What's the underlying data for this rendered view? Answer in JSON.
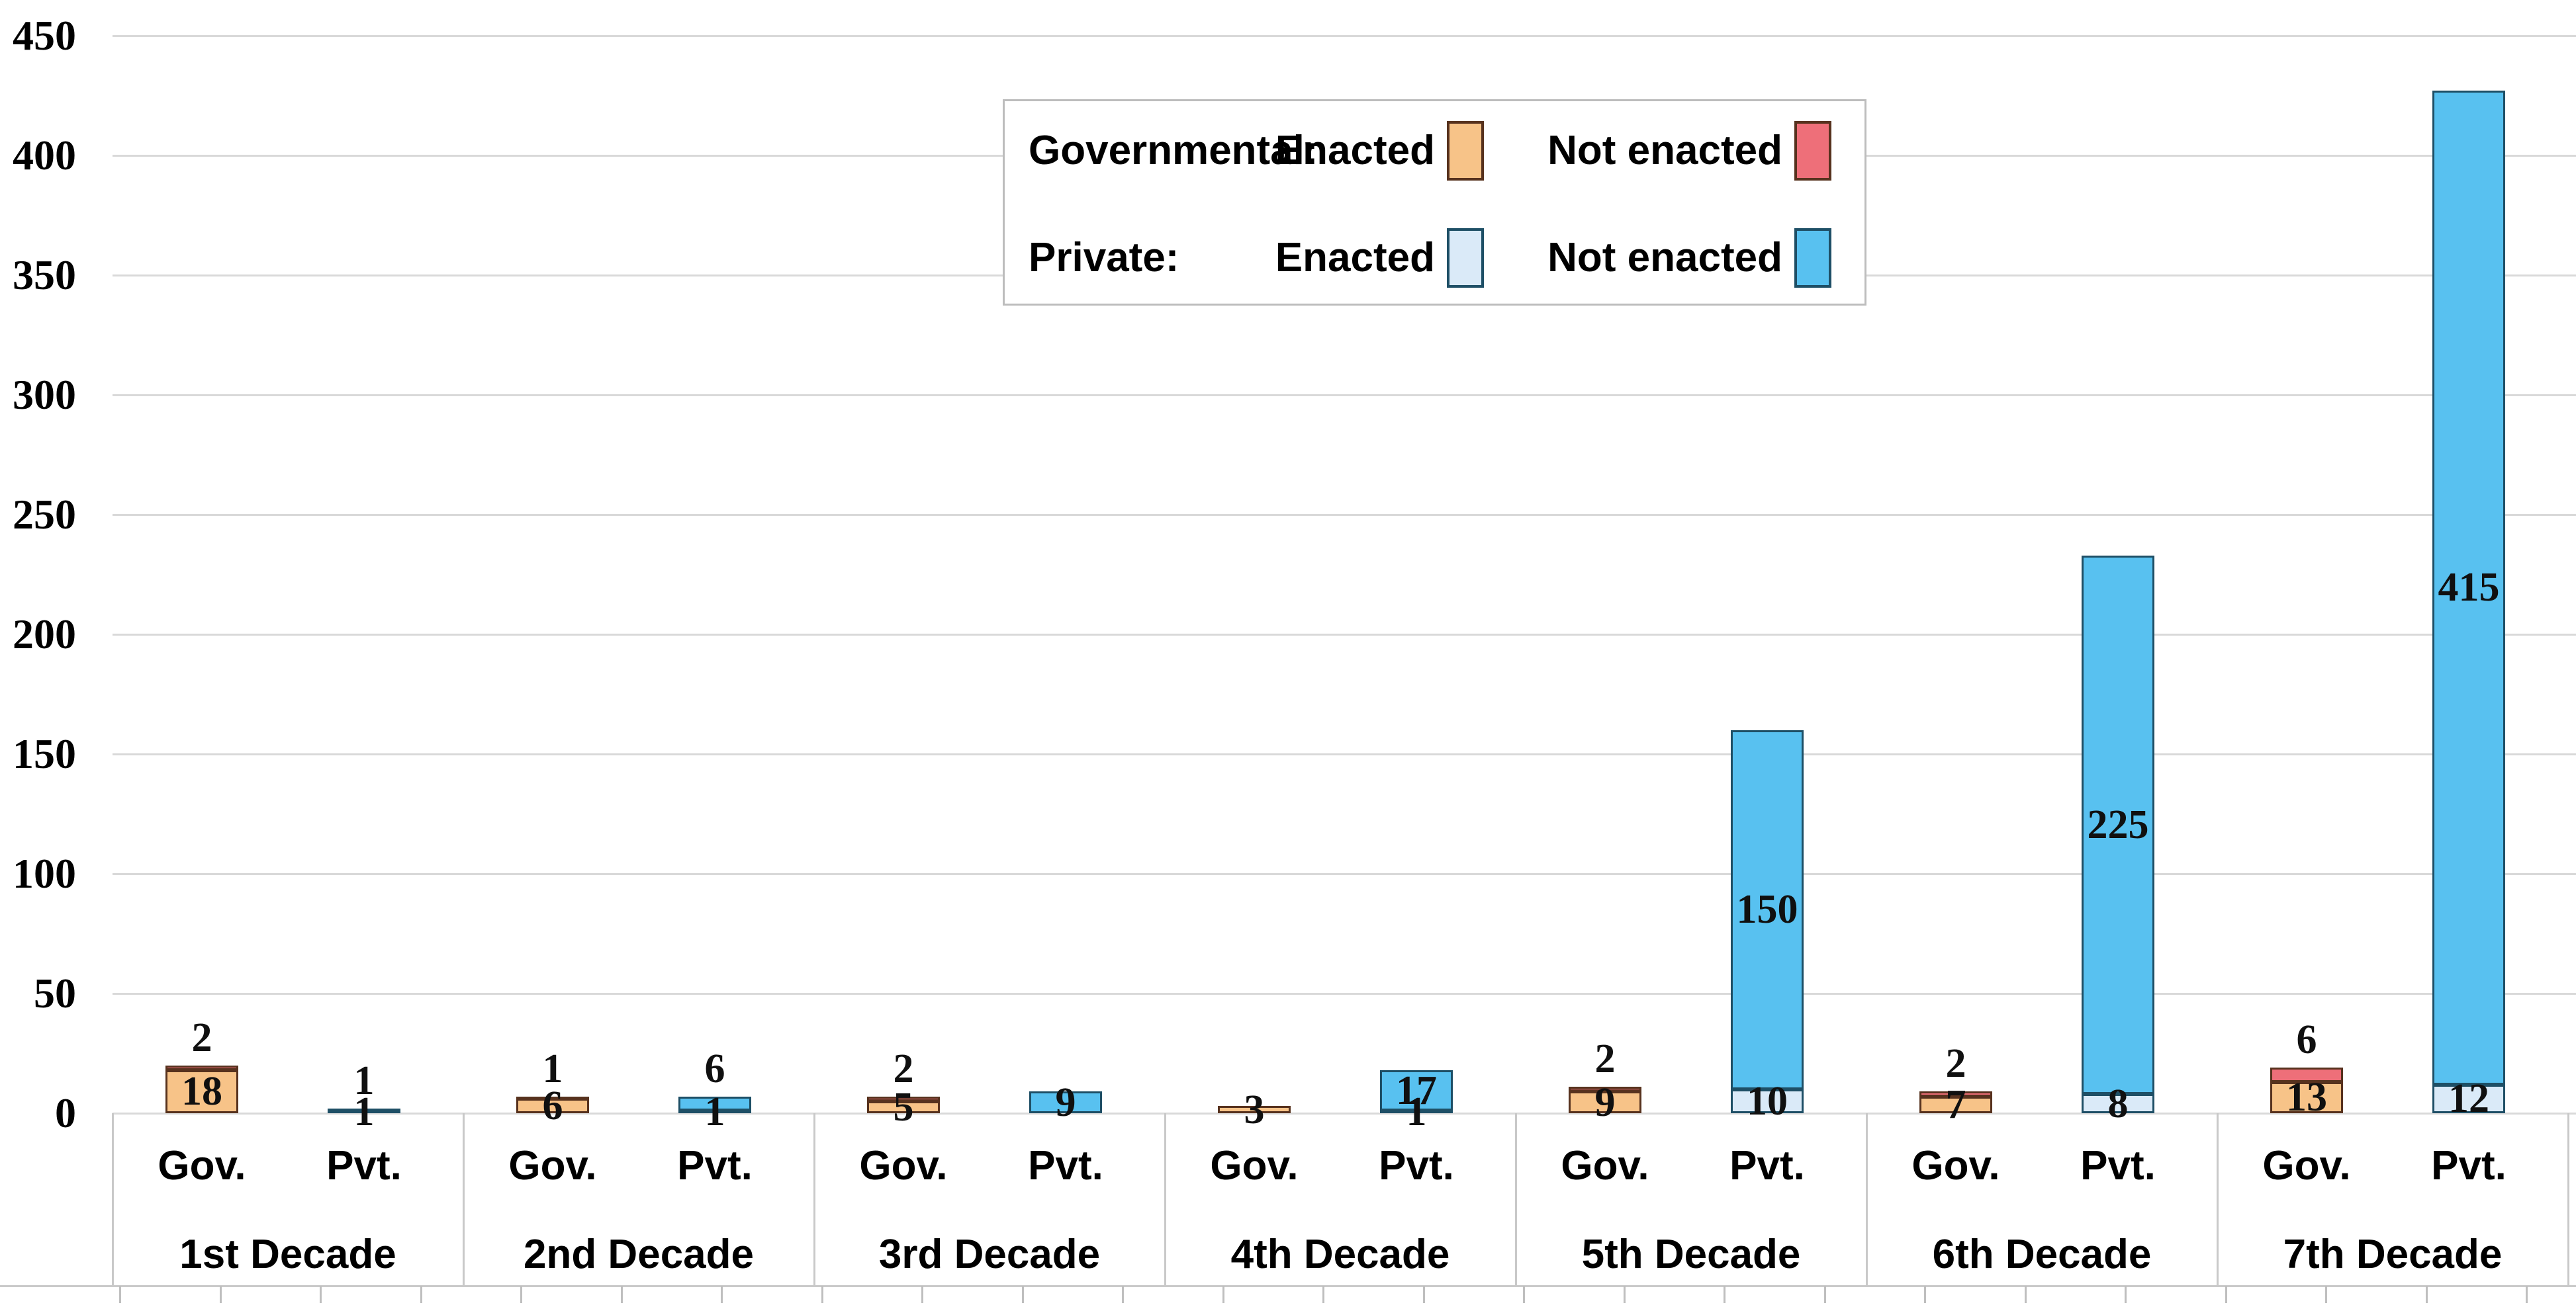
{
  "page": {
    "background": "#ffffff"
  },
  "colors": {
    "gov_enacted_fill": "#F7C388",
    "gov_not_enacted_fill": "#EE6F79",
    "gov_border": "#57321E",
    "pvt_enacted_fill": "#DAEAF8",
    "pvt_not_enacted_fill": "#58C1F0",
    "pvt_border": "#1E4F66",
    "gridline": "#D9D9D9",
    "divider": "#C9C9C9",
    "minor_tick": "#BFBFBF",
    "label_text": "#000000"
  },
  "legend": {
    "rows": [
      {
        "prefix": "Governmental:",
        "items": [
          {
            "label": "Enacted",
            "fill": "#F7C388",
            "border": "#57321E"
          },
          {
            "label": "Not enacted",
            "fill": "#EE6F79",
            "border": "#57321E"
          }
        ]
      },
      {
        "prefix": "Private:",
        "items": [
          {
            "label": "Enacted",
            "fill": "#DAEAF8",
            "border": "#1E4F66"
          },
          {
            "label": "Not enacted",
            "fill": "#58C1F0",
            "border": "#1E4F66"
          }
        ]
      }
    ]
  },
  "chart_data": {
    "type": "bar",
    "subtype": "grouped-stacked-columns",
    "title": "",
    "xlabel": "",
    "ylabel": "",
    "grid": "horizontal",
    "legend_position": "top-center",
    "y_axis": {
      "min": 0,
      "max": 450,
      "step": 50,
      "tick_labels": [
        "450",
        "400",
        "350",
        "300",
        "250",
        "200",
        "150",
        "100",
        "50",
        "0"
      ]
    },
    "x_axis": {
      "groups": [
        "1st Decade",
        "2nd Decade",
        "3rd Decade",
        "4th Decade",
        "5th Decade",
        "6th Decade",
        "7th Decade"
      ],
      "subcategories": [
        "Gov.",
        "Pvt."
      ]
    },
    "series": [
      {
        "name": "Governmental Enacted",
        "values": [
          18,
          6,
          5,
          3,
          9,
          7,
          13
        ]
      },
      {
        "name": "Governmental Not enacted",
        "values": [
          2,
          1,
          2,
          0,
          2,
          2,
          6
        ]
      },
      {
        "name": "Private Enacted",
        "values": [
          1,
          1,
          0,
          1,
          10,
          8,
          12
        ]
      },
      {
        "name": "Private Not enacted",
        "values": [
          1,
          6,
          9,
          17,
          150,
          225,
          415
        ]
      }
    ],
    "bars": [
      {
        "group": "1st Decade",
        "cat": "Gov.",
        "type": "gov",
        "enacted": 18,
        "not_enacted": 2,
        "labels": [
          {
            "text": "18",
            "pos": "seg1"
          },
          {
            "text": "2",
            "pos": "above"
          }
        ]
      },
      {
        "group": "1st Decade",
        "cat": "Pvt.",
        "type": "pvt",
        "enacted": 1,
        "not_enacted": 1,
        "labels": [
          {
            "text": "1",
            "pos": "seg1"
          },
          {
            "text": "1",
            "pos": "above"
          }
        ]
      },
      {
        "group": "2nd Decade",
        "cat": "Gov.",
        "type": "gov",
        "enacted": 6,
        "not_enacted": 1,
        "labels": [
          {
            "text": "6",
            "pos": "seg1"
          },
          {
            "text": "1",
            "pos": "above"
          }
        ]
      },
      {
        "group": "2nd Decade",
        "cat": "Pvt.",
        "type": "pvt",
        "enacted": 1,
        "not_enacted": 6,
        "labels": [
          {
            "text": "1",
            "pos": "seg1"
          },
          {
            "text": "6",
            "pos": "above"
          }
        ]
      },
      {
        "group": "3rd Decade",
        "cat": "Gov.",
        "type": "gov",
        "enacted": 5,
        "not_enacted": 2,
        "labels": [
          {
            "text": "5",
            "pos": "seg1"
          },
          {
            "text": "2",
            "pos": "above"
          }
        ]
      },
      {
        "group": "3rd Decade",
        "cat": "Pvt.",
        "type": "pvt",
        "enacted": 0,
        "not_enacted": 9,
        "labels": [
          {
            "text": "9",
            "pos": "seg2"
          }
        ]
      },
      {
        "group": "4th Decade",
        "cat": "Gov.",
        "type": "gov",
        "enacted": 3,
        "not_enacted": 0,
        "labels": [
          {
            "text": "3",
            "pos": "seg1"
          }
        ]
      },
      {
        "group": "4th Decade",
        "cat": "Pvt.",
        "type": "pvt",
        "enacted": 1,
        "not_enacted": 17,
        "labels": [
          {
            "text": "1",
            "pos": "seg1"
          },
          {
            "text": "17",
            "pos": "seg2"
          }
        ]
      },
      {
        "group": "5th Decade",
        "cat": "Gov.",
        "type": "gov",
        "enacted": 9,
        "not_enacted": 2,
        "labels": [
          {
            "text": "9",
            "pos": "seg1"
          },
          {
            "text": "2",
            "pos": "above"
          }
        ]
      },
      {
        "group": "5th Decade",
        "cat": "Pvt.",
        "type": "pvt",
        "enacted": 10,
        "not_enacted": 150,
        "labels": [
          {
            "text": "10",
            "pos": "seg1"
          },
          {
            "text": "150",
            "pos": "seg2"
          }
        ]
      },
      {
        "group": "6th Decade",
        "cat": "Gov.",
        "type": "gov",
        "enacted": 7,
        "not_enacted": 2,
        "labels": [
          {
            "text": "7",
            "pos": "seg1"
          },
          {
            "text": "2",
            "pos": "above"
          }
        ]
      },
      {
        "group": "6th Decade",
        "cat": "Pvt.",
        "type": "pvt",
        "enacted": 8,
        "not_enacted": 225,
        "labels": [
          {
            "text": "8",
            "pos": "seg1"
          },
          {
            "text": "225",
            "pos": "seg2"
          }
        ]
      },
      {
        "group": "7th Decade",
        "cat": "Gov.",
        "type": "gov",
        "enacted": 13,
        "not_enacted": 6,
        "labels": [
          {
            "text": "13",
            "pos": "seg1"
          },
          {
            "text": "6",
            "pos": "above"
          }
        ]
      },
      {
        "group": "7th Decade",
        "cat": "Pvt.",
        "type": "pvt",
        "enacted": 12,
        "not_enacted": 415,
        "labels": [
          {
            "text": "12",
            "pos": "seg1"
          },
          {
            "text": "415",
            "pos": "seg2"
          }
        ]
      }
    ]
  }
}
